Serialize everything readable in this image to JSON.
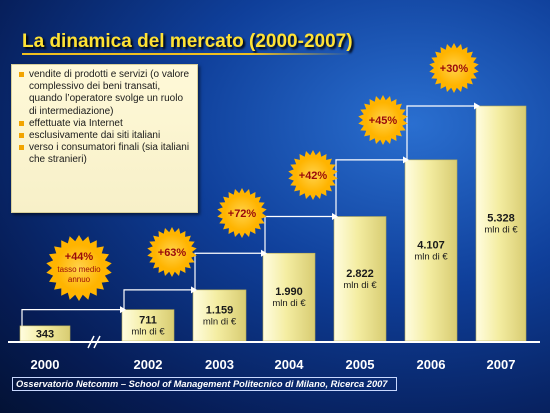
{
  "title": "La dinamica del mercato (2000-2007)",
  "notes": [
    "vendite di prodotti e servizi (o valore complessivo dei beni transati, quando l’operatore svolge un ruolo di intermediazione)",
    "effettuate via Internet",
    "esclusivamente dai siti italiani",
    "verso i consumatori finali (sia italiani che stranieri)"
  ],
  "footer": "Osservatorio Netcomm – School of Management Politecnico di Milano, Ricerca 2007",
  "colors": {
    "title": "#ffe234",
    "bar_light": "#fffde0",
    "bar_mid": "#f4eda2",
    "bar_dark": "#d8cc72",
    "burst": "#ffb400",
    "burst_core": "#ffd24a",
    "burst_text": "#9a0a0a",
    "axis": "#ffffff"
  },
  "chart_data": {
    "type": "bar",
    "categories": [
      "2000",
      "2002",
      "2003",
      "2004",
      "2005",
      "2006",
      "2007"
    ],
    "values": [
      343,
      711,
      1159,
      1990,
      2822,
      4107,
      5328
    ],
    "value_labels": [
      [
        "343"
      ],
      [
        "711",
        "mln di €"
      ],
      [
        "1.159",
        "mln di €"
      ],
      [
        "1.990",
        "mln di €"
      ],
      [
        "2.822",
        "mln di €"
      ],
      [
        "4.107",
        "mln di €"
      ],
      [
        "5.328",
        "mln di €"
      ]
    ],
    "growth_labels": [
      [
        "+44%",
        "tasso medio",
        "annuo"
      ],
      [
        "+63%"
      ],
      [
        "+72%"
      ],
      [
        "+42%"
      ],
      [
        "+45%"
      ],
      [
        "+30%"
      ]
    ],
    "ylim": [
      0,
      5328
    ],
    "axis_break_after": "2000",
    "xlabel": "",
    "ylabel": ""
  }
}
